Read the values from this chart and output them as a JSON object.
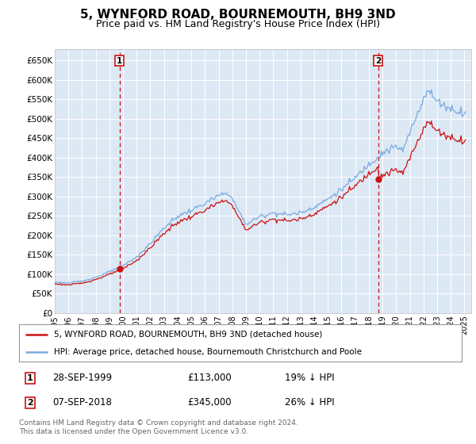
{
  "title": "5, WYNFORD ROAD, BOURNEMOUTH, BH9 3ND",
  "subtitle": "Price paid vs. HM Land Registry's House Price Index (HPI)",
  "title_fontsize": 11,
  "subtitle_fontsize": 9,
  "hpi_color": "#7aaadd",
  "price_color": "#cc1111",
  "plot_bg_color": "#dde8f5",
  "grid_color": "#ffffff",
  "ylim": [
    0,
    680000
  ],
  "yticks": [
    0,
    50000,
    100000,
    150000,
    200000,
    250000,
    300000,
    350000,
    400000,
    450000,
    500000,
    550000,
    600000,
    650000
  ],
  "ytick_labels": [
    "£0",
    "£50K",
    "£100K",
    "£150K",
    "£200K",
    "£250K",
    "£300K",
    "£350K",
    "£400K",
    "£450K",
    "£500K",
    "£550K",
    "£600K",
    "£650K"
  ],
  "xlim_start": 1995.0,
  "xlim_end": 2025.5,
  "sale1_x": 1999.74,
  "sale1_y": 113000,
  "sale1_label": "1",
  "sale1_date": "28-SEP-1999",
  "sale1_price": "£113,000",
  "sale1_note": "19% ↓ HPI",
  "sale2_x": 2018.68,
  "sale2_y": 345000,
  "sale2_label": "2",
  "sale2_date": "07-SEP-2018",
  "sale2_price": "£345,000",
  "sale2_note": "26% ↓ HPI",
  "legend_line1": "5, WYNFORD ROAD, BOURNEMOUTH, BH9 3ND (detached house)",
  "legend_line2": "HPI: Average price, detached house, Bournemouth Christchurch and Poole",
  "footer": "Contains HM Land Registry data © Crown copyright and database right 2024.\nThis data is licensed under the Open Government Licence v3.0."
}
